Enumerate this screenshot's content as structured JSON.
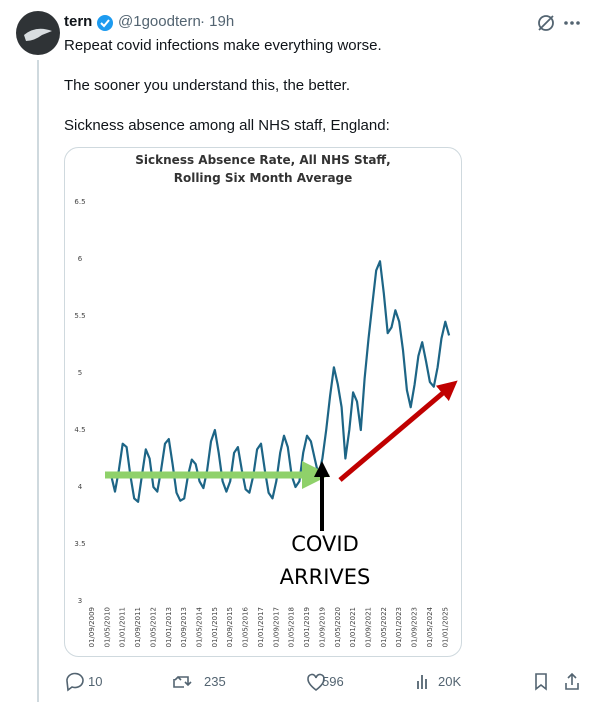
{
  "tweet": {
    "author": "tern",
    "handle": "@1goodtern",
    "time": "· 19h",
    "text": [
      "Repeat covid infections make everything worse.",
      "The sooner you understand this, the better.",
      "Sickness absence among all NHS staff, England:"
    ],
    "stats": {
      "replies": 10,
      "reposts": 235,
      "likes": 596,
      "views": "20K"
    }
  },
  "chart_data": {
    "type": "line",
    "title": [
      "Sickness Absence Rate, All NHS Staff,",
      "Rolling Six Month Average"
    ],
    "annotation": [
      "COVID",
      "ARRIVES"
    ],
    "categories": [
      "01/09/2009",
      null,
      null,
      null,
      "01/05/2010",
      null,
      null,
      null,
      "01/01/2011",
      null,
      null,
      null,
      "01/09/2011",
      null,
      null,
      null,
      "01/05/2012",
      null,
      null,
      null,
      "01/01/2013",
      null,
      null,
      null,
      "01/09/2013",
      null,
      null,
      null,
      "01/05/2014",
      null,
      null,
      null,
      "01/01/2015",
      null,
      null,
      null,
      "01/09/2015",
      null,
      null,
      null,
      "01/05/2016",
      null,
      null,
      null,
      "01/01/2017",
      null,
      null,
      null,
      "01/09/2017",
      null,
      null,
      null,
      "01/05/2018",
      null,
      null,
      null,
      "01/01/2019",
      null,
      null,
      null,
      "01/09/2019",
      null,
      null,
      null,
      "01/05/2020",
      null,
      null,
      null,
      "01/01/2021",
      null,
      null,
      null,
      "01/09/2021",
      null,
      null,
      null,
      "01/05/2022",
      null,
      null,
      null,
      "01/01/2023",
      null,
      null,
      null,
      "01/09/2023",
      null,
      null,
      null,
      "01/05/2024",
      null,
      null,
      null,
      "01/01/2025",
      null
    ],
    "values": [
      null,
      null,
      null,
      null,
      null,
      4.1,
      3.96,
      4.15,
      4.38,
      4.35,
      4.1,
      3.9,
      3.87,
      4.1,
      4.33,
      4.25,
      4.0,
      3.96,
      4.15,
      4.38,
      4.42,
      4.2,
      3.95,
      3.88,
      3.9,
      4.1,
      4.24,
      4.2,
      4.05,
      3.99,
      4.15,
      4.4,
      4.5,
      4.3,
      4.05,
      3.96,
      4.05,
      4.3,
      4.35,
      4.15,
      3.98,
      3.95,
      4.1,
      4.33,
      4.38,
      4.15,
      3.95,
      3.9,
      4.05,
      4.3,
      4.45,
      4.35,
      4.1,
      4.0,
      4.05,
      4.3,
      4.45,
      4.4,
      4.25,
      4.1,
      4.25,
      4.5,
      4.8,
      5.05,
      4.9,
      4.7,
      4.25,
      4.5,
      4.83,
      4.75,
      4.5,
      4.95,
      5.3,
      5.6,
      5.9,
      5.98,
      5.7,
      5.35,
      5.4,
      5.55,
      5.45,
      5.2,
      4.85,
      4.7,
      4.9,
      5.15,
      5.27,
      5.1,
      4.92,
      4.88,
      5.05,
      5.3,
      5.45,
      5.33
    ],
    "color": "#1d6586",
    "ylim": [
      3,
      6.5
    ],
    "yticks": [
      3,
      3.5,
      4,
      4.5,
      5,
      5.5,
      6,
      6.5
    ]
  }
}
